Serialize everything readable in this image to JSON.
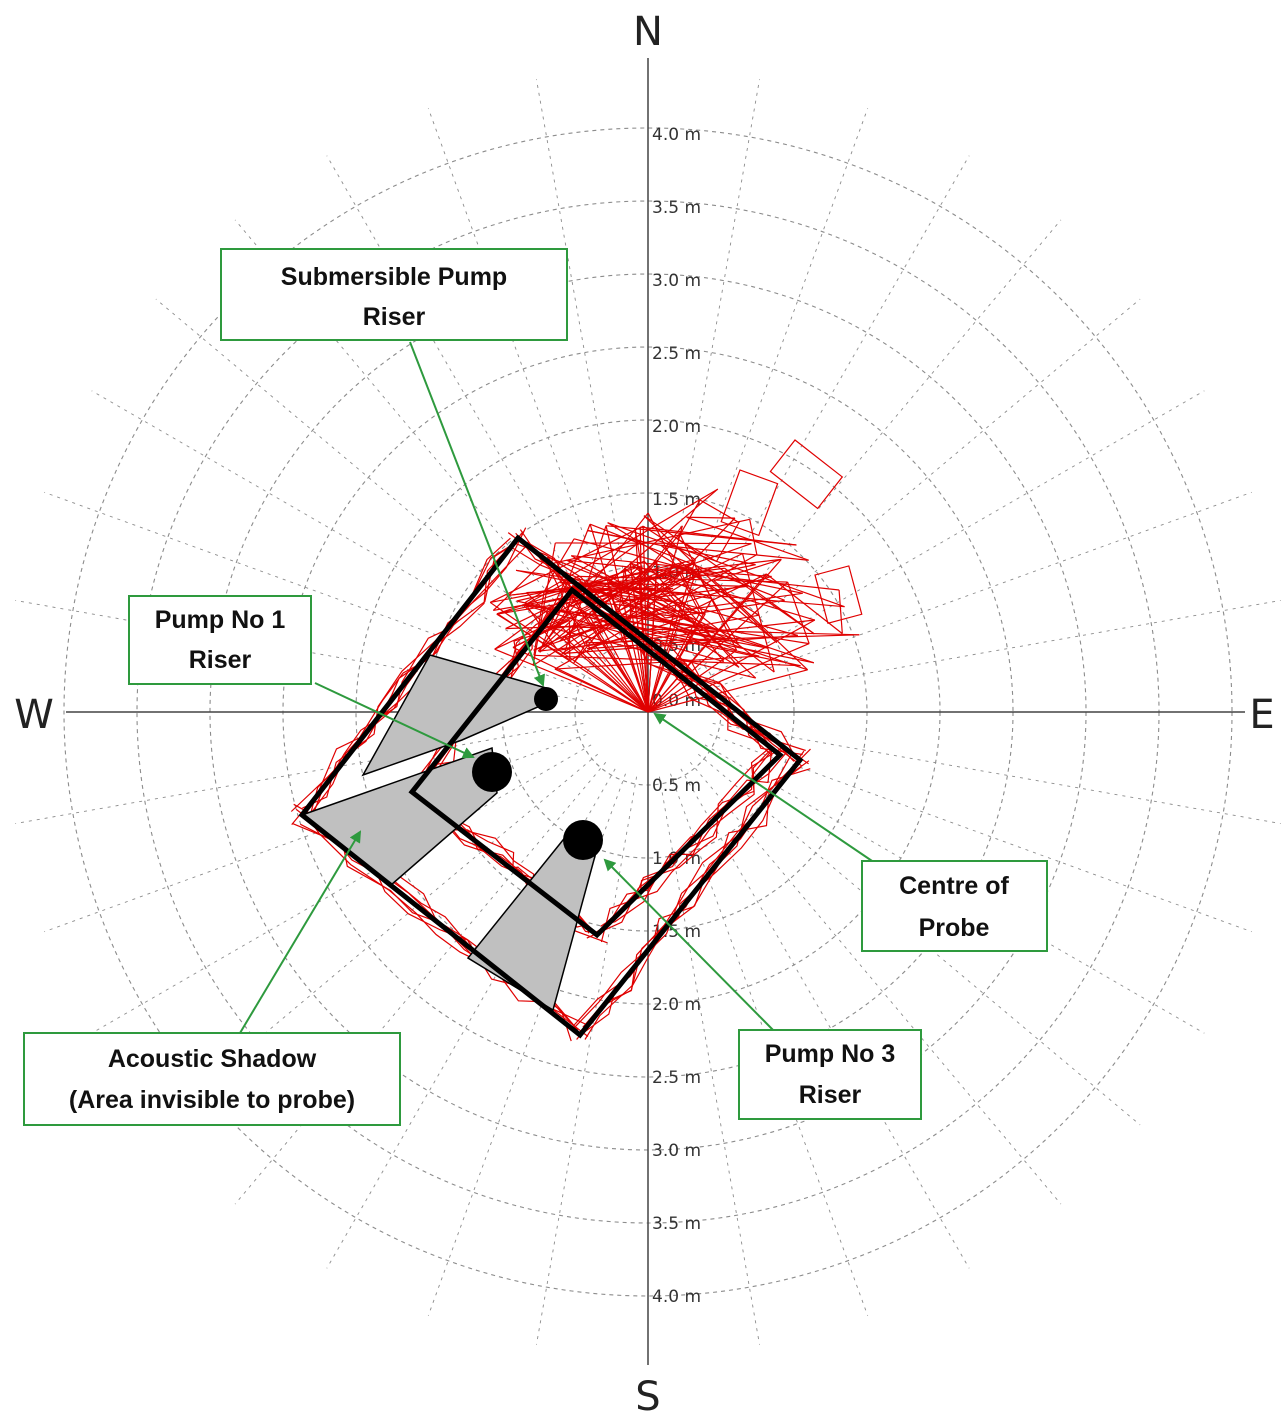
{
  "compass": {
    "north": "N",
    "south": "S",
    "east": "E",
    "west": "W"
  },
  "ring_labels": [
    "0.0 m",
    "0.5 m",
    "1.0 m",
    "1.5 m",
    "2.0 m",
    "2.5 m",
    "3.0 m",
    "3.5 m",
    "4.0 m"
  ],
  "callouts": {
    "submersible_pump_riser": [
      "Submersible Pump",
      "Riser"
    ],
    "pump_no1_riser": [
      "Pump No 1",
      "Riser"
    ],
    "centre_of_probe": [
      "Centre of",
      "Probe"
    ],
    "pump_no3_riser": [
      "Pump No 3",
      "Riser"
    ],
    "acoustic_shadow": [
      "Acoustic Shadow",
      "(Area invisible to probe)"
    ]
  },
  "colors": {
    "sonar_trace": "#e00000",
    "callout_border": "#2e9a3e",
    "shadow_fill": "#c0c0c0",
    "grid": "#8c8c8c"
  }
}
